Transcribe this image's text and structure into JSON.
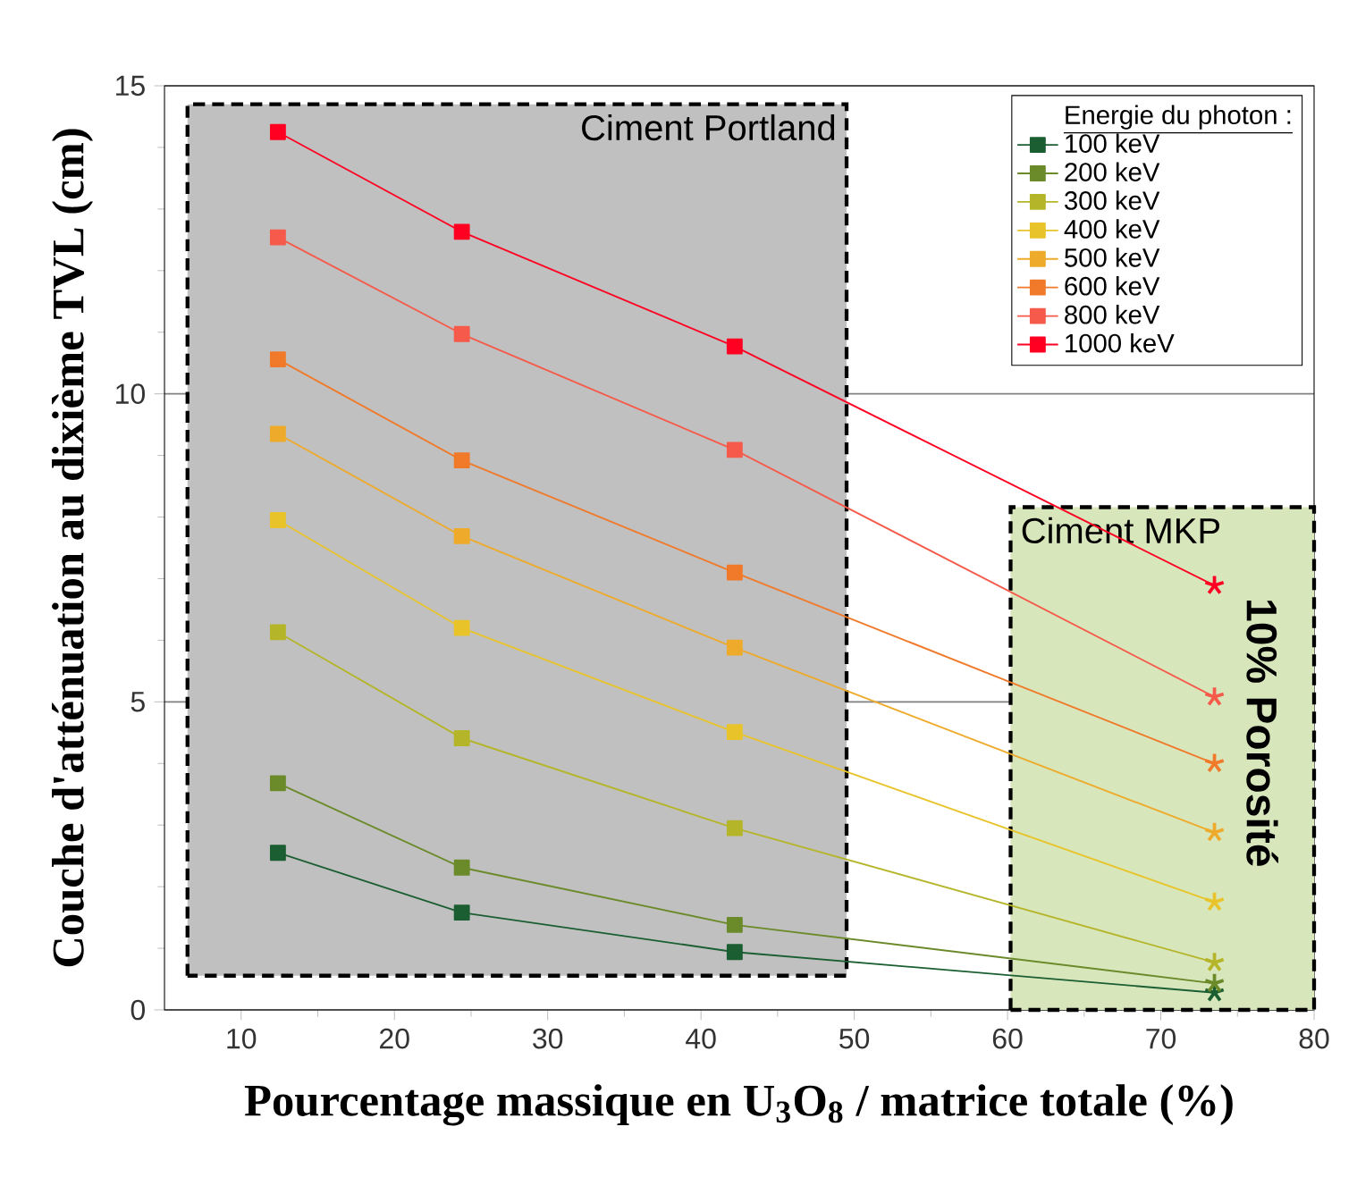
{
  "chart_data": {
    "type": "line",
    "xlabel": "Pourcentage massique en U$_{3}$O$_{8}$ / matrice totale (%)",
    "ylabel": "Couche d'atténuation au dixième TVL (cm)",
    "legend_title": "Energie du photon :",
    "x": [
      12.4,
      24.4,
      42.2,
      73.5
    ],
    "series": [
      {
        "name": "100 keV",
        "color": "#1a5e32",
        "values": [
          2.55,
          1.58,
          0.94,
          0.28
        ]
      },
      {
        "name": "200 keV",
        "color": "#6b8a2a",
        "values": [
          3.68,
          2.31,
          1.38,
          0.43
        ]
      },
      {
        "name": "300 keV",
        "color": "#b5b52a",
        "values": [
          6.13,
          4.41,
          2.95,
          0.77
        ]
      },
      {
        "name": "400 keV",
        "color": "#e8c42a",
        "values": [
          7.95,
          6.2,
          4.51,
          1.75
        ]
      },
      {
        "name": "500 keV",
        "color": "#eeaa2a",
        "values": [
          9.35,
          7.69,
          5.88,
          2.88
        ]
      },
      {
        "name": "600 keV",
        "color": "#f07a2a",
        "values": [
          10.56,
          8.92,
          7.1,
          4.0
        ]
      },
      {
        "name": "800 keV",
        "color": "#f55a4a",
        "values": [
          12.54,
          10.97,
          9.09,
          5.08
        ]
      },
      {
        "name": "1000 keV",
        "color": "#ff0022",
        "values": [
          14.25,
          12.63,
          10.77,
          6.89
        ]
      }
    ],
    "xlim": [
      5,
      80
    ],
    "ylim": [
      0,
      15
    ],
    "xticks": [
      10,
      20,
      30,
      40,
      50,
      60,
      70,
      80
    ],
    "yticks": [
      0,
      5,
      10,
      15
    ],
    "bands": [
      {
        "axis": "x",
        "from": 6.5,
        "to": 49.5,
        "label": "Ciment Portland",
        "color": "#c0c0c0"
      },
      {
        "axis": "x",
        "from": 60.2,
        "to": 80,
        "label": "Ciment MKP",
        "color": "#d8e6bc"
      }
    ],
    "annotations": [
      "10% Porosité"
    ],
    "grid": "y",
    "legend": "top right",
    "marker": "square",
    "line_style": "solid"
  }
}
